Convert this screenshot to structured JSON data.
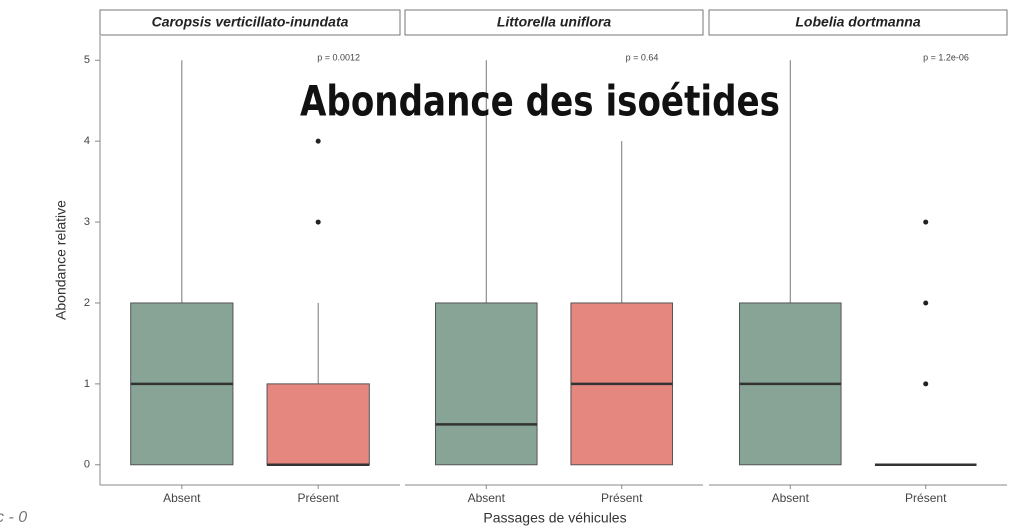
{
  "chart_data": {
    "type": "box",
    "title": "Abondance des isoétides",
    "caption": "c - 0",
    "y_label": "Abondance relative",
    "x_label": "Passages de véhicules",
    "categories": [
      "Absent",
      "Présent"
    ],
    "colors": [
      "#87a497",
      "#e5877f"
    ],
    "ylim": [
      -0.25,
      5.3
    ],
    "yticks": [
      0,
      1,
      2,
      3,
      4,
      5
    ],
    "facets": [
      {
        "title": "Caropsis verticillato-inundata",
        "p_label": "p = 0.0012",
        "boxes": [
          {
            "whisker_low": 0,
            "q1": 0,
            "median": 1,
            "q3": 2,
            "whisker_high": 5,
            "outliers": []
          },
          {
            "whisker_low": 0,
            "q1": 0,
            "median": 0,
            "q3": 1,
            "whisker_high": 2,
            "outliers": [
              3,
              4
            ]
          }
        ]
      },
      {
        "title": "Littorella uniflora",
        "p_label": "p = 0.64",
        "boxes": [
          {
            "whisker_low": 0,
            "q1": 0,
            "median": 0.5,
            "q3": 2,
            "whisker_high": 5,
            "outliers": []
          },
          {
            "whisker_low": 0,
            "q1": 0,
            "median": 1,
            "q3": 2,
            "whisker_high": 4,
            "outliers": []
          }
        ]
      },
      {
        "title": "Lobelia dortmanna",
        "p_label": "p = 1.2e-06",
        "boxes": [
          {
            "whisker_low": 0,
            "q1": 0,
            "median": 1,
            "q3": 2,
            "whisker_high": 5,
            "outliers": []
          },
          {
            "whisker_low": 0,
            "q1": 0,
            "median": 0,
            "q3": 0,
            "whisker_high": 0,
            "outliers": [
              1,
              2,
              3
            ]
          }
        ]
      }
    ]
  }
}
